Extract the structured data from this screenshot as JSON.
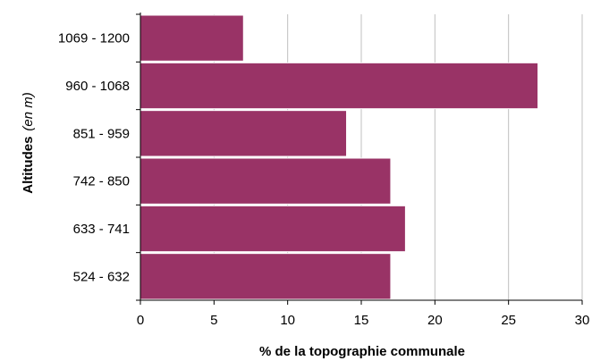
{
  "chart_data": {
    "type": "bar",
    "orientation": "horizontal",
    "categories": [
      "1069 - 1200",
      "960 - 1068",
      "851 - 959",
      "742 - 850",
      "633 - 741",
      "524 - 632"
    ],
    "values": [
      7,
      27,
      14,
      17,
      18,
      17
    ],
    "xlabel": "% de la topographie communale",
    "ylabel": "Altitudes",
    "ylabel_unit": "(en m)",
    "xlim": [
      0,
      30
    ],
    "xticks": [
      0,
      5,
      10,
      15,
      20,
      25,
      30
    ],
    "grid": "vertical",
    "legend": "none",
    "colors": {
      "bar": "#993366",
      "bar_edge": "#ffffff",
      "grid": "#c0c0c0",
      "axis": "#000000"
    }
  }
}
